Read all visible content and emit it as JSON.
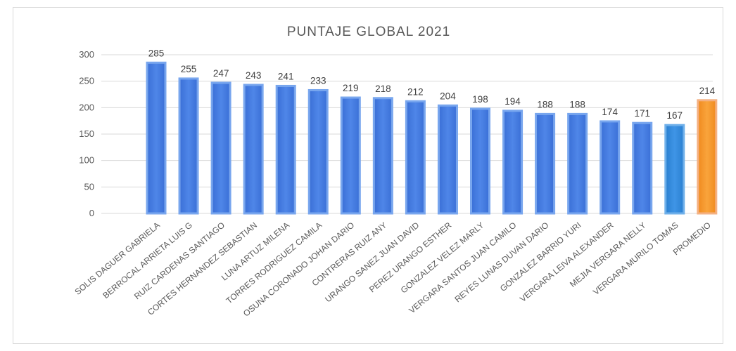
{
  "chart_data": {
    "type": "bar",
    "title": "PUNTAJE GLOBAL 2021",
    "xlabel": "",
    "ylabel": "",
    "ylim": [
      0,
      300
    ],
    "yticks": [
      0,
      50,
      100,
      150,
      200,
      250,
      300
    ],
    "grid": true,
    "legend": "none",
    "categories": [
      "SOLIS DAGUER GABRIELA",
      "BERROCAL ARRIETA LUIS G",
      "RUIZ CARDENAS SANTIAGO",
      "CORTES HERNANDEZ SEBASTIAN",
      "LUNA ARTUZ MILENA",
      "TORRES RODRIGUEZ CAMILA",
      "OSUNA CORONADO JOHAN DARIO",
      "CONTRERAS RUIZ ANY",
      "URANGO SANEZ JUAN DAVID",
      "PEREZ URANGO ESTHER",
      "GONZALEZ VELEZ MARLY",
      "VERGARA SANTOS JUAN CAMILO",
      "REYES LUNAS DUVAN DARIO",
      "GONZALEZ BARRIO YURI",
      "VERGARA LEIVA ALEXANDER",
      "MEJIA VERGARA NELLY",
      "VERGARA MURILO TOMAS",
      "PROMEDIO"
    ],
    "values": [
      285,
      255,
      247,
      243,
      241,
      233,
      219,
      218,
      212,
      204,
      198,
      194,
      188,
      188,
      174,
      171,
      167,
      214
    ],
    "value_labels": [
      "285",
      "255",
      "247",
      "243",
      "241",
      "233",
      "219",
      "218",
      "212",
      "204",
      "198",
      "194",
      "188",
      "188",
      "174",
      "171",
      "167",
      "214"
    ],
    "colors": {
      "bar": "#4472c4",
      "bar_border": "#5b9bd5",
      "bar_alt": "#2e75b6",
      "highlight": "#ed7d31",
      "highlight_border": "#f4b183",
      "grid": "#d9d9d9",
      "text": "#595959"
    }
  }
}
